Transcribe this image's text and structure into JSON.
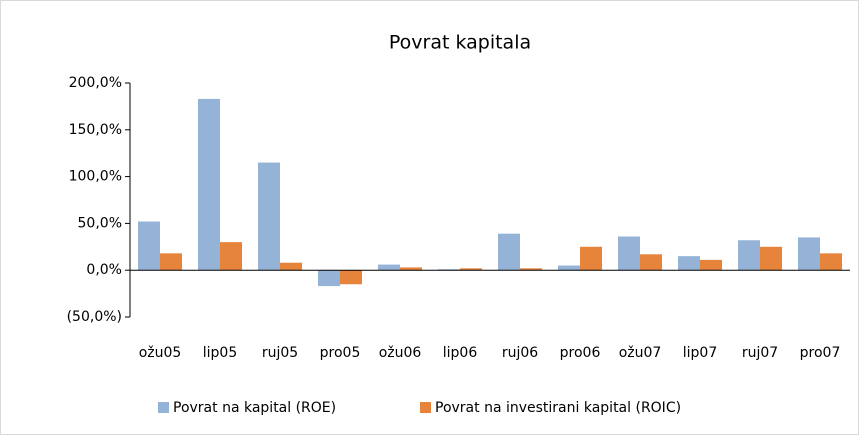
{
  "chart_data": {
    "type": "bar",
    "title": "Povrat kapitala",
    "categories": [
      "ožu05",
      "lip05",
      "ruj05",
      "pro05",
      "ožu06",
      "lip06",
      "ruj06",
      "pro06",
      "ožu07",
      "lip07",
      "ruj07",
      "pro07"
    ],
    "series": [
      {
        "name": "Povrat na kapital (ROE)",
        "color": "#95b3d7",
        "values": [
          52,
          183,
          115,
          -17,
          6,
          1,
          39,
          5,
          36,
          15,
          32,
          35
        ]
      },
      {
        "name": "Povrat na investirani kapital (ROIC)",
        "color": "#e6843c",
        "values": [
          18,
          30,
          8,
          -15,
          3,
          2,
          2,
          25,
          17,
          11,
          25,
          18
        ]
      }
    ],
    "ylim": [
      -50,
      200
    ],
    "yticks": [
      {
        "value": -50,
        "label": "(50,0%)"
      },
      {
        "value": 0,
        "label": "0,0%"
      },
      {
        "value": 50,
        "label": "50,0%"
      },
      {
        "value": 100,
        "label": "100,0%"
      },
      {
        "value": 150,
        "label": "150,0%"
      },
      {
        "value": 200,
        "label": "200,0%"
      }
    ],
    "grid": false,
    "legend": "bottom"
  }
}
